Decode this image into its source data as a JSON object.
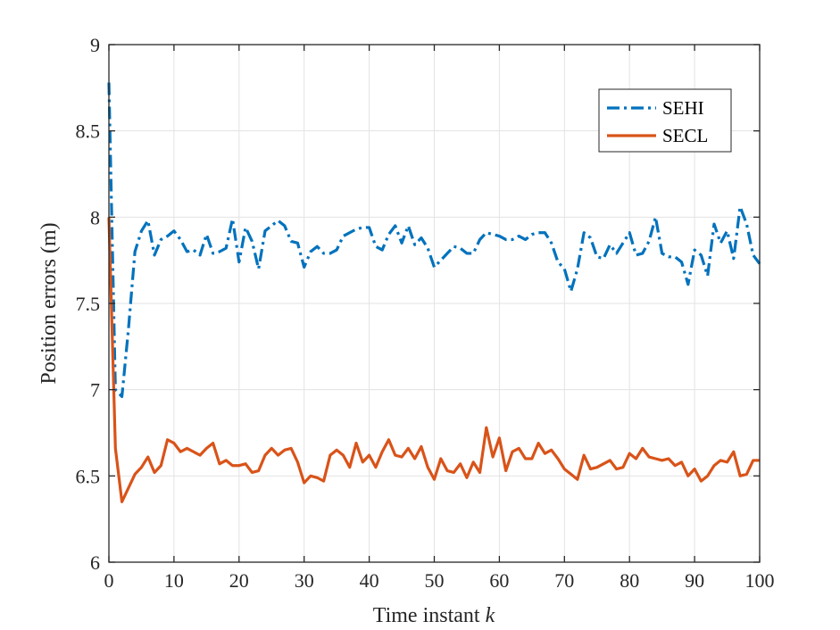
{
  "chart_data": {
    "type": "line",
    "title": "",
    "xlabel": "Time instant",
    "xlabel_var": "k",
    "ylabel": "Position errors (m)",
    "xlim": [
      0,
      100
    ],
    "ylim": [
      6,
      9
    ],
    "grid": true,
    "legend_position": "top-right",
    "xticks": [
      0,
      10,
      20,
      30,
      40,
      50,
      60,
      70,
      80,
      90,
      100
    ],
    "xtick_labels": [
      "0",
      "10",
      "20",
      "30",
      "40",
      "50",
      "60",
      "70",
      "80",
      "90",
      "100"
    ],
    "yticks": [
      6,
      6.5,
      7,
      7.5,
      8,
      8.5,
      9
    ],
    "ytick_labels": [
      "6",
      "6.5",
      "7",
      "7.5",
      "8",
      "8.5",
      "9"
    ],
    "series": [
      {
        "name": "SEHI",
        "color": "#0072BD",
        "style": "dashdot",
        "x": [
          0,
          1,
          2,
          3,
          4,
          5,
          6,
          7,
          8,
          9,
          10,
          11,
          12,
          13,
          14,
          15,
          16,
          17,
          18,
          19,
          20,
          21,
          22,
          23,
          24,
          25,
          26,
          27,
          28,
          29,
          30,
          31,
          32,
          33,
          34,
          35,
          36,
          37,
          38,
          39,
          40,
          41,
          42,
          43,
          44,
          45,
          46,
          47,
          48,
          49,
          50,
          51,
          52,
          53,
          54,
          55,
          56,
          57,
          58,
          59,
          60,
          61,
          62,
          63,
          64,
          65,
          66,
          67,
          68,
          69,
          70,
          71,
          72,
          73,
          74,
          75,
          76,
          77,
          78,
          79,
          80,
          81,
          82,
          83,
          84,
          85,
          86,
          87,
          88,
          89,
          90,
          91,
          92,
          93,
          94,
          95,
          96,
          97,
          98,
          99,
          100
        ],
        "values": [
          8.78,
          7.0,
          6.96,
          7.35,
          7.8,
          7.92,
          7.98,
          7.78,
          7.87,
          7.89,
          7.92,
          7.87,
          7.8,
          7.81,
          7.78,
          7.9,
          7.79,
          7.8,
          7.82,
          7.99,
          7.74,
          7.94,
          7.86,
          7.7,
          7.92,
          7.95,
          7.98,
          7.95,
          7.86,
          7.85,
          7.71,
          7.8,
          7.83,
          7.79,
          7.79,
          7.81,
          7.89,
          7.91,
          7.93,
          7.94,
          7.94,
          7.83,
          7.81,
          7.9,
          7.95,
          7.85,
          7.95,
          7.84,
          7.88,
          7.82,
          7.71,
          7.75,
          7.79,
          7.83,
          7.82,
          7.79,
          7.79,
          7.87,
          7.91,
          7.9,
          7.89,
          7.87,
          7.87,
          7.89,
          7.87,
          7.9,
          7.91,
          7.91,
          7.85,
          7.74,
          7.7,
          7.57,
          7.7,
          7.91,
          7.88,
          7.77,
          7.76,
          7.84,
          7.79,
          7.85,
          7.91,
          7.78,
          7.79,
          7.86,
          8.0,
          7.79,
          7.77,
          7.77,
          7.74,
          7.61,
          7.81,
          7.78,
          7.66,
          7.96,
          7.85,
          7.92,
          7.76,
          8.06,
          7.96,
          7.78,
          7.73
        ]
      },
      {
        "name": "SECL",
        "color": "#D95319",
        "style": "solid",
        "x": [
          0,
          1,
          2,
          3,
          4,
          5,
          6,
          7,
          8,
          9,
          10,
          11,
          12,
          13,
          14,
          15,
          16,
          17,
          18,
          19,
          20,
          21,
          22,
          23,
          24,
          25,
          26,
          27,
          28,
          29,
          30,
          31,
          32,
          33,
          34,
          35,
          36,
          37,
          38,
          39,
          40,
          41,
          42,
          43,
          44,
          45,
          46,
          47,
          48,
          49,
          50,
          51,
          52,
          53,
          54,
          55,
          56,
          57,
          58,
          59,
          60,
          61,
          62,
          63,
          64,
          65,
          66,
          67,
          68,
          69,
          70,
          71,
          72,
          73,
          74,
          75,
          76,
          77,
          78,
          79,
          80,
          81,
          82,
          83,
          84,
          85,
          86,
          87,
          88,
          89,
          90,
          91,
          92,
          93,
          94,
          95,
          96,
          97,
          98,
          99,
          100
        ],
        "values": [
          8.0,
          6.66,
          6.35,
          6.43,
          6.51,
          6.55,
          6.61,
          6.52,
          6.56,
          6.71,
          6.69,
          6.64,
          6.66,
          6.64,
          6.62,
          6.66,
          6.69,
          6.57,
          6.59,
          6.56,
          6.56,
          6.57,
          6.52,
          6.53,
          6.62,
          6.66,
          6.62,
          6.65,
          6.66,
          6.58,
          6.46,
          6.5,
          6.49,
          6.47,
          6.62,
          6.65,
          6.62,
          6.55,
          6.69,
          6.58,
          6.62,
          6.55,
          6.64,
          6.71,
          6.62,
          6.61,
          6.66,
          6.6,
          6.67,
          6.55,
          6.48,
          6.6,
          6.53,
          6.52,
          6.57,
          6.49,
          6.58,
          6.52,
          6.78,
          6.61,
          6.72,
          6.53,
          6.64,
          6.66,
          6.6,
          6.6,
          6.69,
          6.63,
          6.65,
          6.6,
          6.54,
          6.51,
          6.48,
          6.62,
          6.54,
          6.55,
          6.57,
          6.59,
          6.54,
          6.55,
          6.63,
          6.6,
          6.66,
          6.61,
          6.6,
          6.59,
          6.6,
          6.56,
          6.58,
          6.5,
          6.54,
          6.47,
          6.5,
          6.56,
          6.59,
          6.58,
          6.64,
          6.5,
          6.51,
          6.59,
          6.59
        ]
      }
    ]
  }
}
